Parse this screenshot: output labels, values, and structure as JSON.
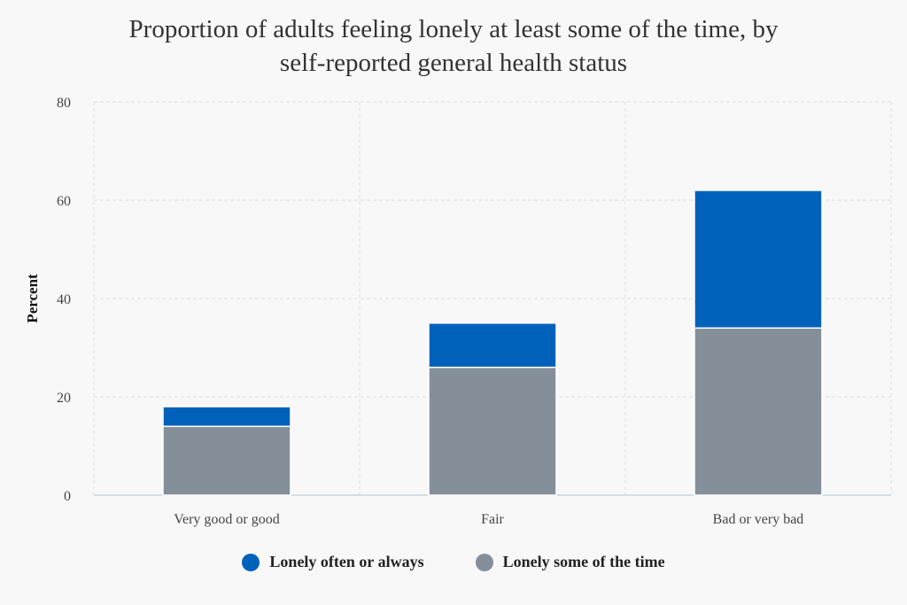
{
  "chart_data": {
    "type": "bar",
    "stacked": true,
    "title_lines": [
      "Proportion of adults feeling lonely at least some of the time, by",
      "self-reported general health status"
    ],
    "xlabel": "",
    "ylabel": "Percent",
    "ylim": [
      0,
      80
    ],
    "yticks": [
      0,
      20,
      40,
      60,
      80
    ],
    "grid": true,
    "legend_position": "bottom",
    "categories": [
      "Very good or good",
      "Fair",
      "Bad or very bad"
    ],
    "series": [
      {
        "name": "Lonely some of the time",
        "color": "#858f9a",
        "values": [
          14,
          26,
          34
        ]
      },
      {
        "name": "Lonely often or always",
        "color": "#0061bb",
        "values": [
          4,
          9,
          28
        ]
      }
    ],
    "legend": [
      {
        "name": "Lonely often or always",
        "color": "#0061bb"
      },
      {
        "name": "Lonely some of the time",
        "color": "#858f9a"
      }
    ]
  }
}
